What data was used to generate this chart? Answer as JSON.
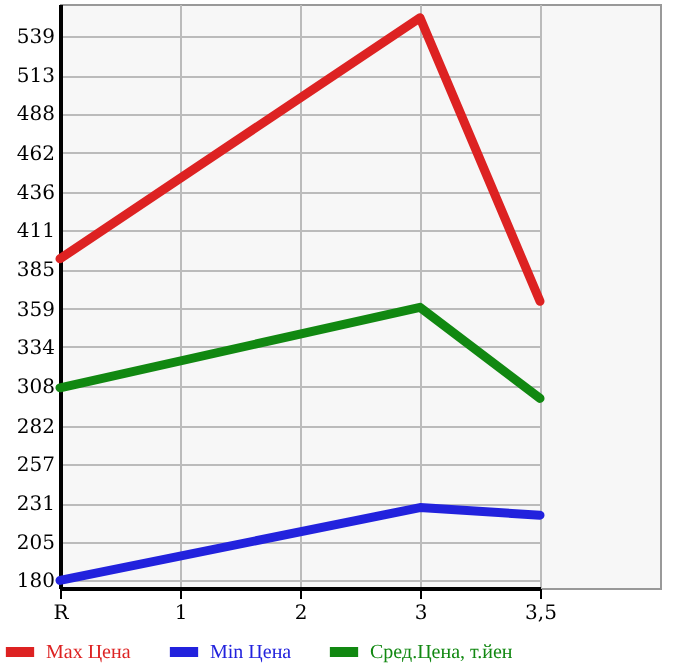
{
  "chart_data": {
    "type": "line",
    "categories": [
      "R",
      "1",
      "2",
      "3",
      "3,5"
    ],
    "series": [
      {
        "name": "Max Цена",
        "color": "#dd2222",
        "values": [
          392,
          null,
          null,
          551,
          364
        ]
      },
      {
        "name": "Min Цена",
        "color": "#2222dd",
        "values": [
          180,
          null,
          null,
          228,
          223
        ]
      },
      {
        "name": "Сред.Цена, т.йен",
        "color": "#118811",
        "values": [
          307,
          null,
          null,
          360,
          300
        ]
      }
    ],
    "ylim": [
      175,
      560
    ],
    "yticks": [
      180,
      205,
      231,
      257,
      282,
      308,
      334,
      359,
      385,
      411,
      436,
      462,
      488,
      513,
      539
    ],
    "grid": true,
    "legend": "bottom",
    "marker": "none",
    "line_style": "solid"
  }
}
